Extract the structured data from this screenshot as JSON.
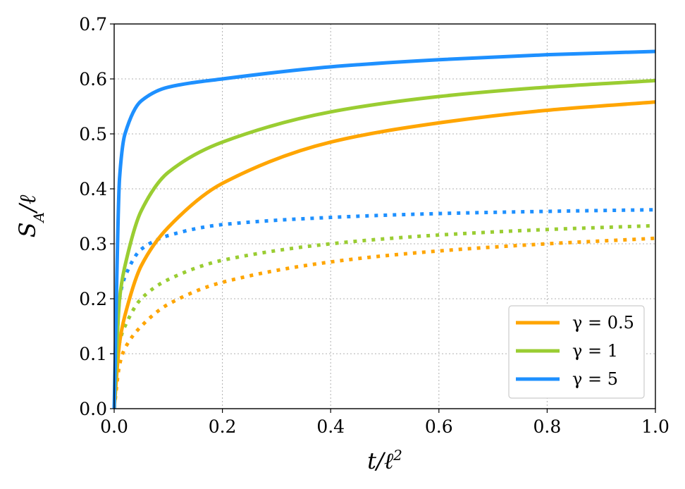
{
  "chart_data": {
    "type": "line",
    "title": "",
    "xlabel": "t/ℓ²",
    "ylabel": "S_A/ℓ",
    "xlim": [
      0.0,
      1.0
    ],
    "ylim": [
      0.0,
      0.7
    ],
    "xticks": [
      "0.0",
      "0.2",
      "0.4",
      "0.6",
      "0.8",
      "1.0"
    ],
    "yticks": [
      "0.0",
      "0.1",
      "0.2",
      "0.3",
      "0.4",
      "0.5",
      "0.6",
      "0.7"
    ],
    "grid": true,
    "legend_position": "lower-right",
    "x": [
      0.0,
      0.01,
      0.02,
      0.05,
      0.1,
      0.2,
      0.4,
      0.6,
      0.8,
      1.0
    ],
    "series": [
      {
        "name": "γ = 0.5",
        "style": "solid",
        "color": "#FFA500",
        "values": [
          0.0,
          0.12,
          0.17,
          0.26,
          0.33,
          0.41,
          0.485,
          0.52,
          0.543,
          0.558
        ]
      },
      {
        "name": "γ = 1",
        "style": "solid",
        "color": "#9ACD32",
        "values": [
          0.0,
          0.2,
          0.26,
          0.36,
          0.43,
          0.485,
          0.54,
          0.568,
          0.585,
          0.597
        ]
      },
      {
        "name": "γ = 5",
        "style": "solid",
        "color": "#1E90FF",
        "values": [
          0.0,
          0.42,
          0.5,
          0.56,
          0.585,
          0.6,
          0.622,
          0.635,
          0.644,
          0.65
        ]
      },
      {
        "name": "γ = 0.5 (dotted)",
        "style": "dotted",
        "color": "#FFA500",
        "values": [
          0.0,
          0.08,
          0.11,
          0.15,
          0.19,
          0.23,
          0.267,
          0.287,
          0.3,
          0.31
        ]
      },
      {
        "name": "γ = 1 (dotted)",
        "style": "dotted",
        "color": "#9ACD32",
        "values": [
          0.0,
          0.12,
          0.15,
          0.2,
          0.235,
          0.27,
          0.3,
          0.316,
          0.326,
          0.333
        ]
      },
      {
        "name": "γ = 5 (dotted)",
        "style": "dotted",
        "color": "#1E90FF",
        "values": [
          0.0,
          0.2,
          0.24,
          0.29,
          0.315,
          0.335,
          0.348,
          0.355,
          0.359,
          0.362
        ]
      }
    ],
    "legend_entries": [
      "γ = 0.5",
      "γ = 1",
      "γ = 5"
    ]
  }
}
